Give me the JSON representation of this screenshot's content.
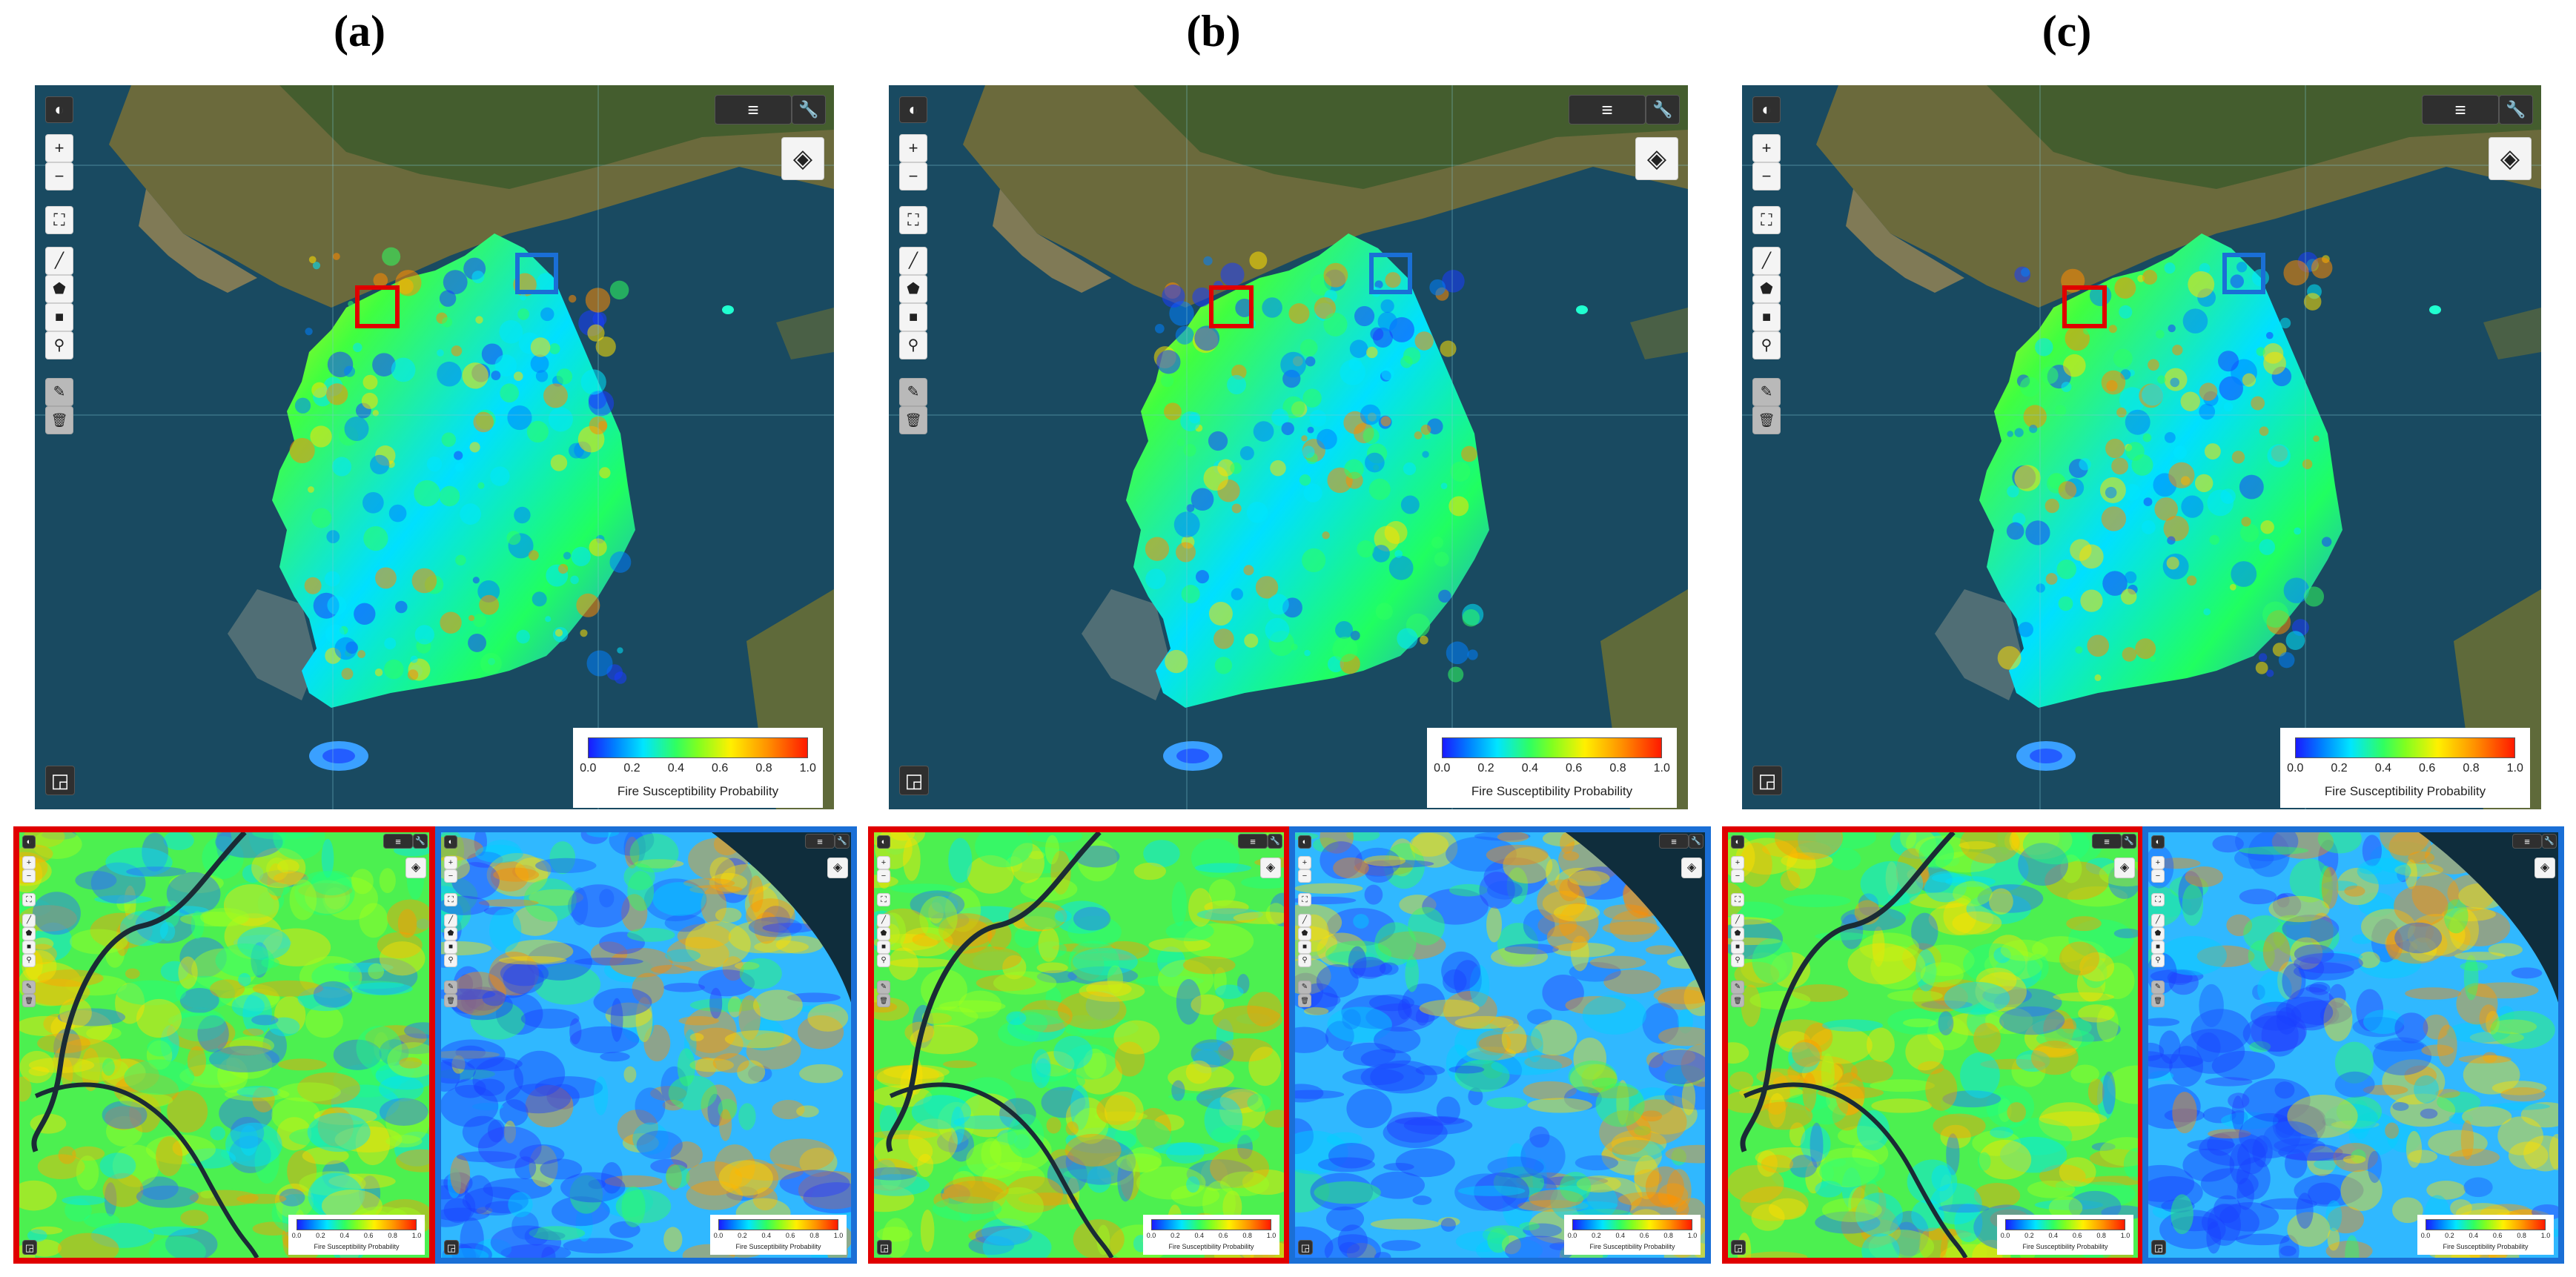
{
  "panels": [
    {
      "label": "(a)"
    },
    {
      "label": "(b)"
    },
    {
      "label": "(c)"
    }
  ],
  "legend": {
    "title": "Fire Susceptibility Probability",
    "ticks": [
      "0.0",
      "0.2",
      "0.4",
      "0.6",
      "0.8",
      "1.0"
    ]
  },
  "colors": {
    "low": "#1a1aff",
    "mid": "#30ff60",
    "high": "#ff1a00",
    "sea": "#1f5a70",
    "roi_red": "#e00000",
    "roi_blue": "#1a6fd6"
  },
  "icons": {
    "globe": "globe-icon",
    "zoom_in": "zoom-in-icon",
    "zoom_out": "zoom-out-icon",
    "fullscreen": "fullscreen-icon",
    "line": "draw-line-icon",
    "polygon": "draw-polygon-icon",
    "rectangle": "draw-rectangle-icon",
    "marker": "marker-icon",
    "edit": "edit-icon",
    "trash": "trash-icon",
    "list": "list-icon",
    "wrench": "wrench-icon",
    "layers": "layers-icon",
    "minimap": "minimap-icon"
  }
}
